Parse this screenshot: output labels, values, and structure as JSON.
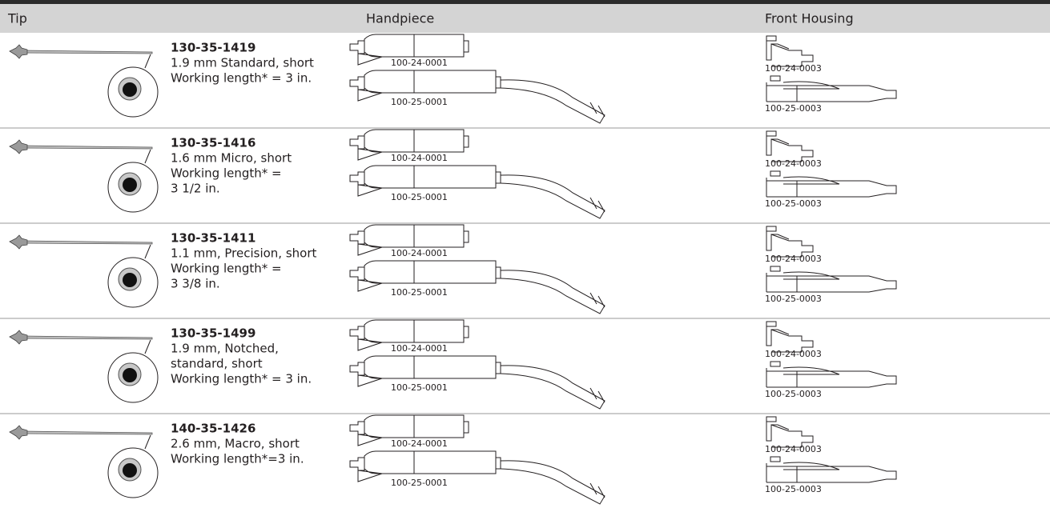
{
  "table": {
    "header": [
      "Tip",
      "Handpiece",
      "Front Housing"
    ],
    "rows": [
      {
        "part": "130-35-1419",
        "lines": [
          "1.9 mm Standard, short",
          "Working length* = 3 in."
        ],
        "handpieces": [
          "100-24-0001",
          "100-25-0001"
        ],
        "housings": [
          "100-24-0003",
          "100-25-0003"
        ]
      },
      {
        "part": "130-35-1416",
        "lines": [
          "1.6 mm Micro, short",
          "Working length* =",
          "3 1/2 in."
        ],
        "handpieces": [
          "100-24-0001",
          "100-25-0001"
        ],
        "housings": [
          "100-24-0003",
          "100-25-0003"
        ]
      },
      {
        "part": "130-35-1411",
        "lines": [
          "1.1 mm, Precision, short",
          "Working length* =",
          "3 3/8 in."
        ],
        "handpieces": [
          "100-24-0001",
          "100-25-0001"
        ],
        "housings": [
          "100-24-0003",
          "100-25-0003"
        ]
      },
      {
        "part": "130-35-1499",
        "lines": [
          "1.9 mm, Notched,",
          "standard, short",
          "Working length* = 3 in."
        ],
        "handpieces": [
          "100-24-0001",
          "100-25-0001"
        ],
        "housings": [
          "100-24-0003",
          "100-25-0003"
        ]
      },
      {
        "part": "140-35-1426",
        "lines": [
          "2.6 mm, Macro, short",
          "Working length*=3 in."
        ],
        "handpieces": [
          "100-24-0001",
          "100-25-0001"
        ],
        "housings": [
          "100-24-0003",
          "100-25-0003"
        ]
      }
    ]
  }
}
